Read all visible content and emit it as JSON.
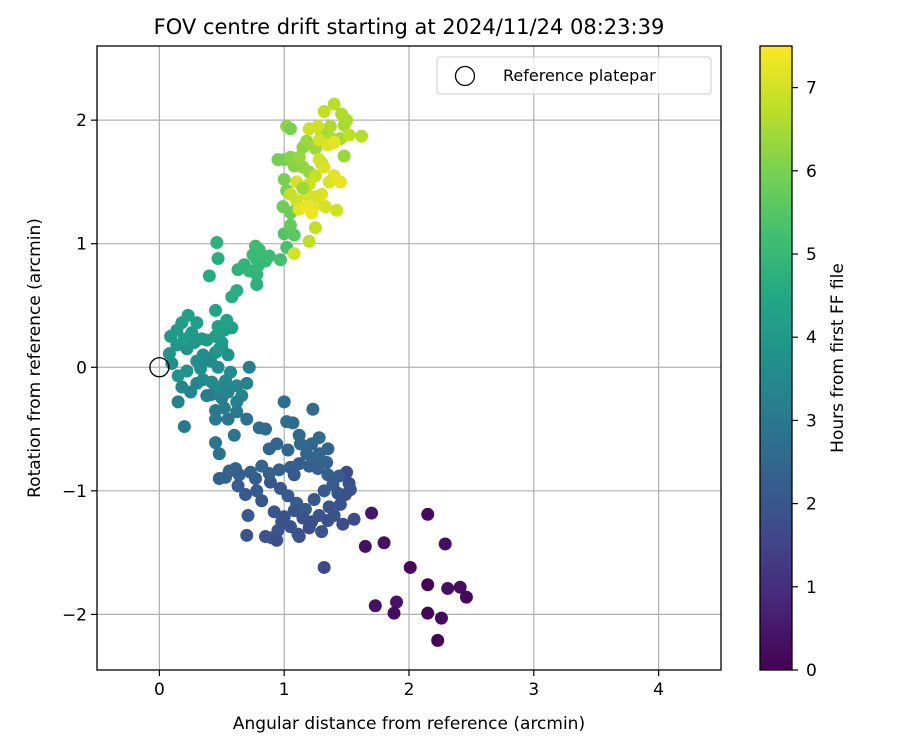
{
  "chart_data": {
    "type": "scatter",
    "title": "FOV centre drift starting at 2024/11/24 08:23:39",
    "xlabel": "Angular distance from reference (arcmin)",
    "ylabel": "Rotation from reference (arcmin)",
    "xlim": [
      -0.5,
      4.5
    ],
    "ylim": [
      -2.45,
      2.6
    ],
    "xticks": [
      "0",
      "1",
      "2",
      "3",
      "4"
    ],
    "yticks": [
      "−2",
      "−1",
      "0",
      "1",
      "2"
    ],
    "grid": true,
    "legend": {
      "position": "top-right",
      "entries": [
        "Reference platepar"
      ]
    },
    "reference_point": {
      "x": 0,
      "y": 0,
      "label": "Reference platepar"
    },
    "colorbar": {
      "label": "Hours from first FF file",
      "range": [
        0,
        7.5
      ],
      "ticks": [
        "0",
        "1",
        "2",
        "3",
        "4",
        "5",
        "6",
        "7"
      ],
      "colormap": "viridis"
    },
    "points": [
      [
        2.15,
        -1.19,
        0.2
      ],
      [
        2.29,
        -1.43,
        0.25
      ],
      [
        1.8,
        -1.42,
        0.3
      ],
      [
        1.65,
        -1.45,
        0.35
      ],
      [
        2.01,
        -1.62,
        0.15
      ],
      [
        2.15,
        -1.76,
        0.1
      ],
      [
        2.31,
        -1.79,
        0.3
      ],
      [
        2.41,
        -1.78,
        0.25
      ],
      [
        2.46,
        -1.86,
        0.15
      ],
      [
        1.9,
        -1.9,
        0.4
      ],
      [
        1.73,
        -1.93,
        0.35
      ],
      [
        1.88,
        -1.99,
        0.25
      ],
      [
        2.15,
        -1.99,
        0.1
      ],
      [
        2.26,
        -2.03,
        0.2
      ],
      [
        2.23,
        -2.21,
        0.05
      ],
      [
        1.7,
        -1.18,
        0.45
      ],
      [
        1.32,
        -1.62,
        1.6
      ],
      [
        1.5,
        -0.85,
        1.7
      ],
      [
        1.52,
        -0.94,
        1.75
      ],
      [
        1.49,
        -1.03,
        1.8
      ],
      [
        1.45,
        -1.11,
        1.85
      ],
      [
        1.56,
        -1.23,
        1.7
      ],
      [
        1.47,
        -1.27,
        1.75
      ],
      [
        1.4,
        -1.2,
        1.85
      ],
      [
        1.35,
        -1.24,
        1.9
      ],
      [
        1.3,
        -1.33,
        1.95
      ],
      [
        1.2,
        -1.3,
        1.8
      ],
      [
        1.12,
        -1.37,
        1.85
      ],
      [
        1.05,
        -1.29,
        1.9
      ],
      [
        0.98,
        -1.25,
        1.95
      ],
      [
        0.95,
        -1.32,
        2.0
      ],
      [
        0.9,
        -1.38,
        2.05
      ],
      [
        0.85,
        -1.37,
        1.9
      ],
      [
        0.7,
        -1.36,
        1.95
      ],
      [
        0.71,
        -1.2,
        2.05
      ],
      [
        0.82,
        -1.08,
        2.0
      ],
      [
        0.78,
        -1.0,
        2.1
      ],
      [
        0.77,
        -0.9,
        2.15
      ],
      [
        0.89,
        -0.93,
        2.0
      ],
      [
        0.97,
        -0.98,
        2.05
      ],
      [
        1.03,
        -1.04,
        2.1
      ],
      [
        1.1,
        -1.1,
        2.15
      ],
      [
        1.17,
        -1.15,
        2.2
      ],
      [
        1.24,
        -1.07,
        2.05
      ],
      [
        1.32,
        -1.0,
        2.1
      ],
      [
        1.39,
        -0.95,
        2.15
      ],
      [
        1.44,
        -0.88,
        2.2
      ],
      [
        1.35,
        -0.87,
        2.25
      ],
      [
        1.27,
        -0.82,
        2.3
      ],
      [
        1.2,
        -0.8,
        2.25
      ],
      [
        1.12,
        -0.78,
        2.2
      ],
      [
        1.05,
        -0.81,
        2.25
      ],
      [
        0.96,
        -0.83,
        2.3
      ],
      [
        0.88,
        -0.86,
        2.35
      ],
      [
        0.82,
        -0.8,
        2.4
      ],
      [
        0.73,
        -0.85,
        2.35
      ],
      [
        0.64,
        -0.87,
        2.3
      ],
      [
        0.61,
        -0.82,
        2.35
      ],
      [
        0.56,
        -0.84,
        2.4
      ],
      [
        0.53,
        -0.89,
        2.3
      ],
      [
        0.48,
        -0.9,
        2.35
      ],
      [
        0.63,
        -0.96,
        2.2
      ],
      [
        0.69,
        -1.03,
        2.1
      ],
      [
        0.92,
        -1.17,
        2.0
      ],
      [
        1.0,
        -1.21,
        1.95
      ],
      [
        1.08,
        -1.16,
        2.0
      ],
      [
        1.15,
        -1.22,
        1.85
      ],
      [
        1.22,
        -1.25,
        1.8
      ],
      [
        1.28,
        -1.2,
        1.9
      ],
      [
        1.36,
        -1.13,
        1.95
      ],
      [
        1.43,
        -1.02,
        2.0
      ],
      [
        1.53,
        -0.99,
        1.9
      ],
      [
        1.34,
        -0.77,
        2.3
      ],
      [
        1.26,
        -0.74,
        2.35
      ],
      [
        1.18,
        -0.7,
        2.4
      ],
      [
        1.28,
        -0.7,
        2.45
      ],
      [
        1.35,
        -0.66,
        2.4
      ],
      [
        1.22,
        -0.62,
        2.5
      ],
      [
        1.28,
        -0.57,
        2.6
      ],
      [
        1.12,
        -0.55,
        2.55
      ],
      [
        1.07,
        -0.45,
        2.6
      ],
      [
        1.02,
        -0.44,
        2.7
      ],
      [
        1.13,
        -0.62,
        2.55
      ],
      [
        1.03,
        -0.67,
        2.5
      ],
      [
        0.94,
        -0.62,
        2.45
      ],
      [
        0.88,
        -0.66,
        2.5
      ],
      [
        0.85,
        -0.5,
        2.6
      ],
      [
        0.8,
        -0.49,
        2.65
      ],
      [
        1.0,
        -0.28,
        2.7
      ],
      [
        1.23,
        -0.34,
        2.65
      ],
      [
        0.94,
        -1.4,
        1.8
      ],
      [
        1.11,
        -1.35,
        1.9
      ],
      [
        1.08,
        -0.87,
        2.1
      ],
      [
        0.7,
        -0.42,
        2.8
      ],
      [
        0.6,
        -0.55,
        2.9
      ],
      [
        0.55,
        -0.42,
        2.95
      ],
      [
        0.62,
        -0.36,
        3.0
      ],
      [
        0.52,
        -0.33,
        3.1
      ],
      [
        0.45,
        -0.35,
        3.05
      ],
      [
        0.45,
        -0.42,
        3.0
      ],
      [
        0.5,
        -0.25,
        3.15
      ],
      [
        0.42,
        -0.22,
        3.2
      ],
      [
        0.38,
        -0.23,
        3.15
      ],
      [
        0.45,
        -0.61,
        2.9
      ],
      [
        0.48,
        -0.7,
        2.85
      ],
      [
        0.2,
        -0.48,
        3.0
      ],
      [
        0.15,
        -0.28,
        3.25
      ],
      [
        0.18,
        -0.16,
        3.35
      ],
      [
        0.25,
        -0.2,
        3.4
      ],
      [
        0.3,
        -0.13,
        3.45
      ],
      [
        0.35,
        -0.1,
        3.5
      ],
      [
        0.42,
        -0.12,
        3.55
      ],
      [
        0.48,
        -0.16,
        3.6
      ],
      [
        0.53,
        -0.11,
        3.5
      ],
      [
        0.57,
        -0.04,
        3.55
      ],
      [
        0.62,
        -0.15,
        3.4
      ],
      [
        0.66,
        -0.23,
        3.35
      ],
      [
        0.7,
        -0.13,
        3.3
      ],
      [
        0.72,
        0.0,
        3.25
      ],
      [
        0.62,
        -0.28,
        3.2
      ],
      [
        0.55,
        -0.2,
        3.3
      ],
      [
        0.33,
        -0.01,
        3.6
      ],
      [
        0.3,
        0.05,
        3.7
      ],
      [
        0.22,
        -0.03,
        3.75
      ],
      [
        0.15,
        -0.07,
        3.8
      ],
      [
        0.1,
        0.03,
        3.65
      ],
      [
        0.08,
        0.11,
        3.85
      ],
      [
        0.14,
        0.18,
        3.9
      ],
      [
        0.22,
        0.15,
        3.8
      ],
      [
        0.28,
        0.2,
        3.95
      ],
      [
        0.35,
        0.1,
        3.7
      ],
      [
        0.41,
        0.05,
        3.6
      ],
      [
        0.45,
        0.12,
        3.75
      ],
      [
        0.5,
        0.16,
        3.85
      ],
      [
        0.55,
        0.1,
        3.8
      ],
      [
        0.47,
        0.0,
        3.65
      ],
      [
        0.38,
        0.07,
        3.55
      ],
      [
        0.09,
        0.25,
        4.0
      ],
      [
        0.14,
        0.3,
        4.05
      ],
      [
        0.18,
        0.36,
        4.1
      ],
      [
        0.23,
        0.42,
        4.2
      ],
      [
        0.26,
        0.28,
        4.0
      ],
      [
        0.3,
        0.36,
        4.15
      ],
      [
        0.34,
        0.23,
        4.05
      ],
      [
        0.38,
        0.22,
        4.0
      ],
      [
        0.45,
        0.25,
        4.1
      ],
      [
        0.5,
        0.2,
        4.05
      ],
      [
        0.52,
        0.3,
        4.15
      ],
      [
        0.47,
        0.33,
        4.2
      ],
      [
        0.54,
        0.38,
        4.3
      ],
      [
        0.45,
        0.46,
        4.35
      ],
      [
        0.58,
        0.32,
        4.25
      ],
      [
        0.48,
        0.15,
        3.95
      ],
      [
        0.2,
        0.23,
        4.1
      ],
      [
        0.47,
        0.88,
        4.7
      ],
      [
        0.4,
        0.74,
        4.6
      ],
      [
        0.58,
        0.57,
        4.65
      ],
      [
        0.62,
        0.62,
        4.7
      ],
      [
        0.63,
        0.79,
        4.8
      ],
      [
        0.68,
        0.83,
        4.85
      ],
      [
        0.72,
        0.78,
        4.9
      ],
      [
        0.78,
        0.67,
        4.75
      ],
      [
        0.78,
        0.75,
        4.85
      ],
      [
        0.79,
        0.82,
        4.95
      ],
      [
        0.78,
        0.87,
        5.0
      ],
      [
        0.75,
        0.91,
        5.05
      ],
      [
        0.8,
        0.95,
        5.1
      ],
      [
        0.85,
        0.86,
        5.0
      ],
      [
        0.88,
        0.9,
        5.1
      ],
      [
        0.77,
        0.98,
        5.15
      ],
      [
        0.46,
        1.01,
        4.8
      ],
      [
        0.97,
        0.87,
        5.2
      ],
      [
        1.02,
        0.97,
        5.3
      ],
      [
        1.0,
        1.08,
        5.4
      ],
      [
        1.05,
        1.1,
        5.5
      ],
      [
        1.08,
        1.07,
        5.55
      ],
      [
        1.05,
        1.25,
        5.8
      ],
      [
        1.1,
        1.28,
        5.9
      ],
      [
        1.0,
        1.52,
        6.0
      ],
      [
        1.02,
        1.43,
        5.95
      ],
      [
        1.08,
        1.63,
        6.1
      ],
      [
        1.0,
        1.68,
        6.0
      ],
      [
        1.05,
        1.7,
        6.15
      ],
      [
        1.15,
        1.62,
        6.25
      ],
      [
        1.2,
        1.58,
        6.3
      ],
      [
        1.15,
        1.78,
        6.2
      ],
      [
        1.18,
        1.83,
        6.35
      ],
      [
        1.12,
        1.7,
        6.3
      ],
      [
        1.25,
        1.77,
        6.4
      ],
      [
        1.3,
        1.65,
        6.5
      ],
      [
        1.3,
        1.9,
        6.45
      ],
      [
        1.37,
        1.95,
        6.55
      ],
      [
        1.38,
        1.85,
        6.6
      ],
      [
        1.45,
        1.85,
        6.45
      ],
      [
        1.48,
        1.71,
        6.35
      ],
      [
        1.48,
        1.96,
        6.5
      ],
      [
        1.5,
        2.0,
        6.55
      ],
      [
        1.46,
        2.05,
        6.6
      ],
      [
        1.4,
        2.13,
        6.7
      ],
      [
        1.32,
        2.07,
        6.8
      ],
      [
        1.2,
        1.93,
        6.9
      ],
      [
        1.27,
        1.95,
        6.95
      ],
      [
        1.28,
        1.84,
        7.0
      ],
      [
        1.35,
        1.8,
        7.1
      ],
      [
        1.4,
        1.82,
        7.2
      ],
      [
        1.32,
        1.62,
        7.1
      ],
      [
        1.28,
        1.68,
        7.0
      ],
      [
        1.25,
        1.55,
        6.85
      ],
      [
        1.2,
        1.48,
        6.9
      ],
      [
        1.1,
        1.5,
        7.0
      ],
      [
        1.15,
        1.45,
        7.05
      ],
      [
        1.18,
        1.4,
        7.1
      ],
      [
        1.1,
        1.35,
        6.95
      ],
      [
        1.05,
        1.4,
        6.85
      ],
      [
        1.12,
        1.28,
        7.2
      ],
      [
        1.18,
        1.3,
        7.3
      ],
      [
        1.22,
        1.25,
        7.35
      ],
      [
        1.28,
        1.32,
        7.25
      ],
      [
        1.3,
        1.4,
        7.15
      ],
      [
        1.25,
        1.38,
        7.05
      ],
      [
        1.33,
        1.3,
        7.0
      ],
      [
        1.36,
        1.5,
        7.1
      ],
      [
        1.4,
        1.55,
        7.2
      ],
      [
        1.45,
        1.5,
        7.25
      ],
      [
        1.42,
        1.27,
        6.95
      ],
      [
        1.52,
        1.88,
        6.75
      ],
      [
        1.62,
        1.87,
        6.65
      ],
      [
        1.08,
        0.92,
        7.0
      ],
      [
        1.2,
        1.02,
        6.75
      ],
      [
        1.25,
        1.13,
        6.8
      ],
      [
        1.02,
        1.95,
        6.2
      ],
      [
        1.05,
        1.93,
        6.0
      ],
      [
        0.95,
        1.68,
        5.9
      ],
      [
        1.15,
        1.45,
        6.4
      ],
      [
        0.99,
        1.3,
        5.85
      ],
      [
        1.05,
        1.15,
        5.7
      ]
    ]
  }
}
